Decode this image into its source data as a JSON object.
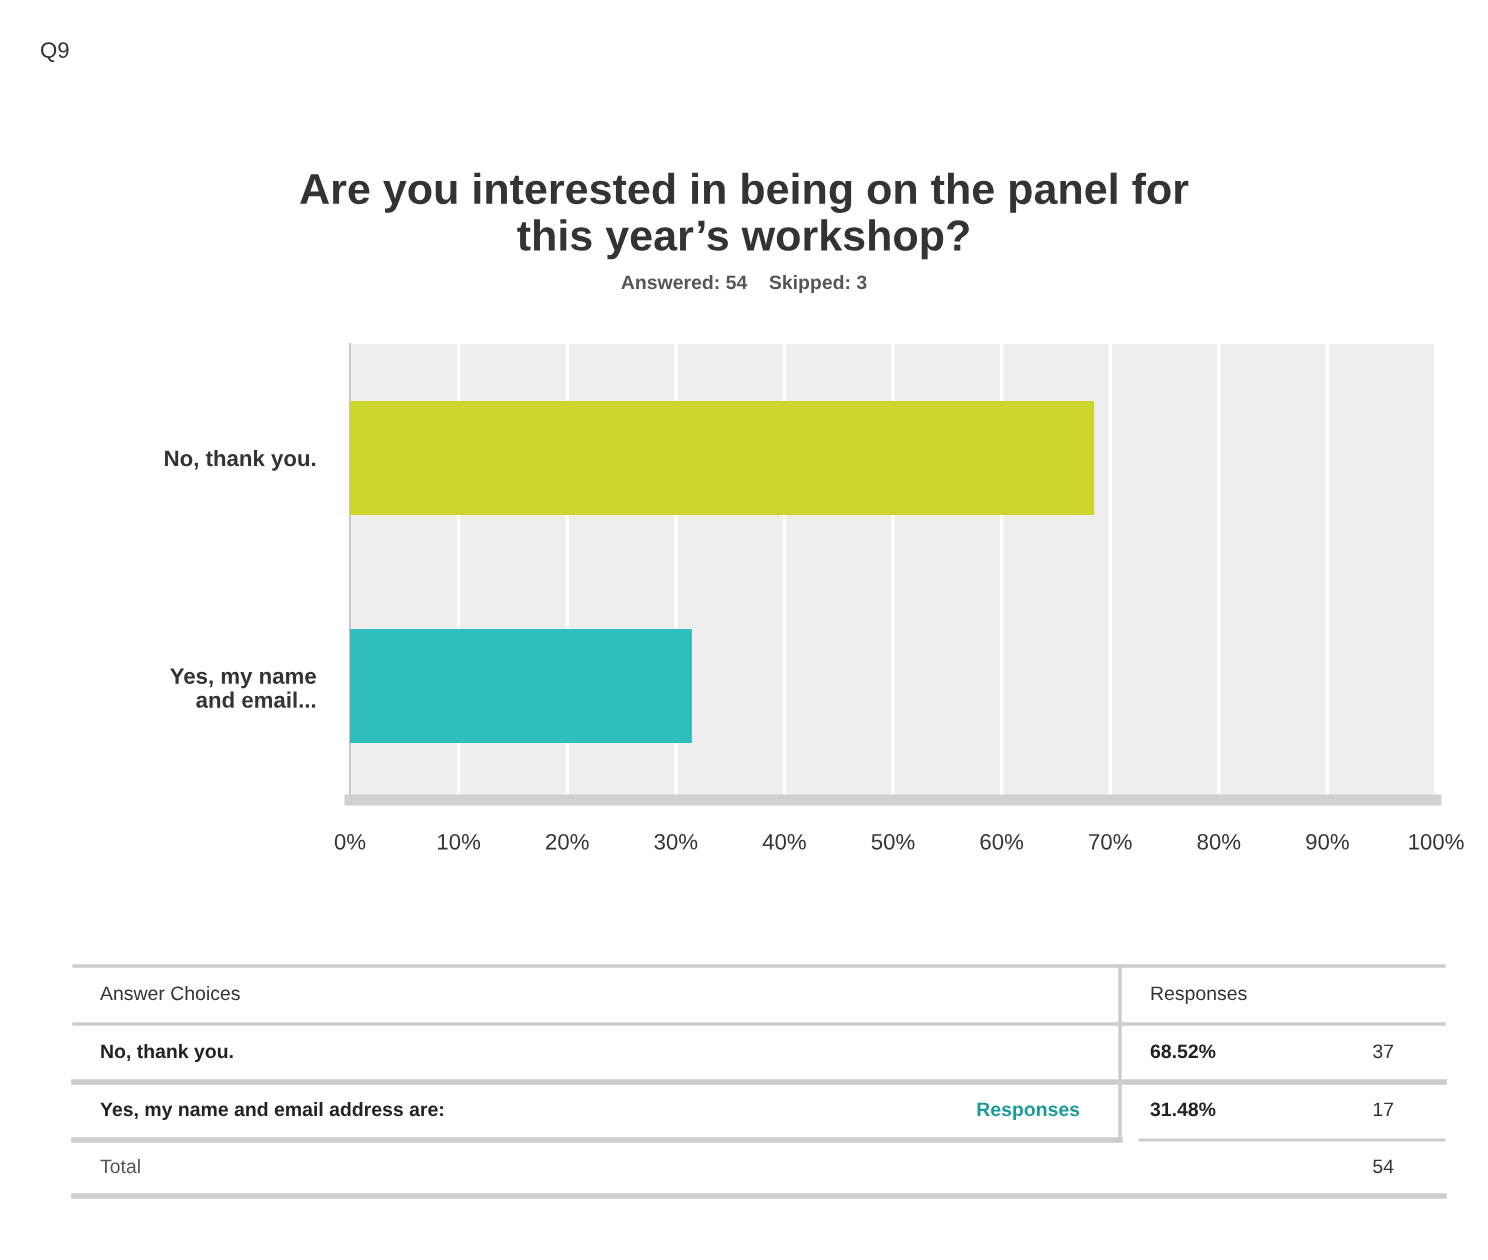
{
  "chart_data": {
    "type": "bar",
    "orientation": "horizontal",
    "title": "Are you interested in being on the panel for\nthis year’s workshop?",
    "subtitle": "Answered: 54    Skipped: 3",
    "categories": [
      "No, thank you.",
      "Yes, my name\nand email..."
    ],
    "values": [
      68.52,
      31.48
    ],
    "colors": [
      "#cdd52a",
      "#2fbdbd"
    ],
    "xlim": [
      0,
      100
    ],
    "xticks": [
      {
        "value": 0,
        "label": "0%"
      },
      {
        "value": 10,
        "label": "10%"
      },
      {
        "value": 20,
        "label": "20%"
      },
      {
        "value": 30,
        "label": "30%"
      },
      {
        "value": 40,
        "label": "40%"
      },
      {
        "value": 50,
        "label": "50%"
      },
      {
        "value": 60,
        "label": "60%"
      },
      {
        "value": 70,
        "label": "70%"
      },
      {
        "value": 80,
        "label": "80%"
      },
      {
        "value": 90,
        "label": "90%"
      },
      {
        "value": 100,
        "label": "100%"
      }
    ],
    "grid": "x",
    "annotations": [
      "Q9",
      "Answer Choices",
      "Responses",
      "No, thank you.",
      "37",
      "Yes, my name and email address are:",
      "Responses",
      "17",
      "Total",
      "54",
      "68.52%",
      "31.48%"
    ]
  }
}
